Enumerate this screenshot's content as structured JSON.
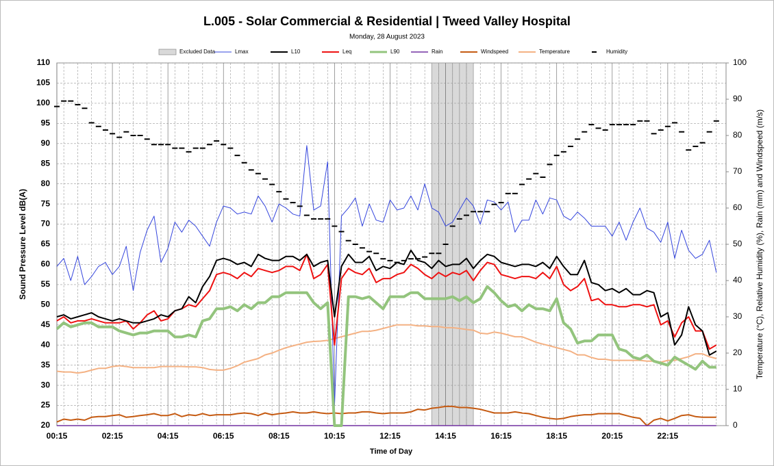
{
  "chart_data": {
    "type": "line",
    "title": "L.005 - Solar Commercial & Residential | Tweed Valley Hospital",
    "subtitle": "Monday, 28 August 2023",
    "x_label": "Time of Day",
    "y_label": "Sound Pressure Level dB(A)",
    "y2_label": "Temperature (°C), Relative Humidity (%), Rain (mm) and Windspeed (m/s)",
    "grid": true,
    "legend": "top",
    "xlim": [
      0.25,
      24.35
    ],
    "ylim": [
      20,
      110
    ],
    "y2lim": [
      0,
      100
    ],
    "xticks": [
      {
        "value": 0.25,
        "label": "00:15"
      },
      {
        "value": 2.25,
        "label": "02:15"
      },
      {
        "value": 4.25,
        "label": "04:15"
      },
      {
        "value": 6.25,
        "label": "06:15"
      },
      {
        "value": 8.25,
        "label": "08:15"
      },
      {
        "value": 10.25,
        "label": "10:15"
      },
      {
        "value": 12.25,
        "label": "12:15"
      },
      {
        "value": 14.25,
        "label": "14:15"
      },
      {
        "value": 16.25,
        "label": "16:15"
      },
      {
        "value": 18.25,
        "label": "18:15"
      },
      {
        "value": 20.25,
        "label": "20:15"
      },
      {
        "value": 22.25,
        "label": "22:15"
      }
    ],
    "yticks": [
      20,
      25,
      30,
      35,
      40,
      45,
      50,
      55,
      60,
      65,
      70,
      75,
      80,
      85,
      90,
      95,
      100,
      105,
      110
    ],
    "y2ticks": [
      0,
      10,
      20,
      30,
      40,
      50,
      60,
      70,
      80,
      90,
      100
    ],
    "excluded": {
      "name": "Excluded Data",
      "color": "#d9d9d9",
      "x": [
        13.75,
        15.25
      ]
    },
    "x": [
      0.25,
      0.5,
      0.75,
      1,
      1.25,
      1.5,
      1.75,
      2,
      2.25,
      2.5,
      2.75,
      3,
      3.25,
      3.5,
      3.75,
      4,
      4.25,
      4.5,
      4.75,
      5,
      5.25,
      5.5,
      5.75,
      6,
      6.25,
      6.5,
      6.75,
      7,
      7.25,
      7.5,
      7.75,
      8,
      8.25,
      8.5,
      8.75,
      9,
      9.25,
      9.5,
      9.75,
      10,
      10.25,
      10.5,
      10.75,
      11,
      11.25,
      11.5,
      11.75,
      12,
      12.25,
      12.5,
      12.75,
      13,
      13.25,
      13.5,
      13.75,
      14,
      14.25,
      14.5,
      14.75,
      15,
      15.25,
      15.5,
      15.75,
      16,
      16.25,
      16.5,
      16.75,
      17,
      17.25,
      17.5,
      17.75,
      18,
      18.25,
      18.5,
      18.75,
      19,
      19.25,
      19.5,
      19.75,
      20,
      20.25,
      20.5,
      20.75,
      21,
      21.25,
      21.5,
      21.75,
      22,
      22.25,
      22.5,
      22.75,
      23,
      23.25,
      23.5,
      23.75,
      24
    ],
    "series": [
      {
        "name": "Lmax",
        "color": "#3344dd",
        "line_width": 1,
        "values": [
          59.5,
          61.5,
          56,
          62,
          55,
          57,
          59.5,
          60.5,
          57.5,
          59.5,
          64.5,
          53.5,
          63,
          68.5,
          72,
          60.5,
          64,
          70.5,
          68,
          71,
          69.5,
          67,
          64.5,
          70.5,
          74.5,
          74,
          72.5,
          73,
          72.5,
          77,
          74.5,
          70.5,
          75,
          74,
          72.5,
          72,
          89.5,
          73.5,
          74.5,
          85.5,
          25,
          72,
          74,
          76.5,
          69.5,
          75,
          71,
          70.5,
          76,
          73.5,
          74,
          77,
          73.5,
          80,
          74,
          73,
          69.5,
          70.5,
          73.5,
          76.5,
          74.5,
          70,
          76,
          75.5,
          73.5,
          75.5,
          68,
          71,
          71,
          76,
          72.5,
          76.5,
          76,
          72,
          71,
          73,
          71.5,
          69.5,
          69.5,
          69.5,
          67,
          70.5,
          66,
          70.5,
          74,
          69,
          68,
          65.5,
          70.5,
          61.5,
          68.5,
          63.5,
          61.5,
          62.5,
          66,
          58
        ]
      },
      {
        "name": "L10",
        "color": "#000000",
        "line_width": 2,
        "values": [
          47,
          47.5,
          46.5,
          47,
          47.5,
          48,
          47,
          46.5,
          46,
          46.5,
          46,
          45.5,
          45.5,
          46,
          46.5,
          47.5,
          47,
          48.5,
          49,
          52,
          50.5,
          54.5,
          57,
          61,
          61.5,
          61,
          60,
          60.5,
          59.5,
          62.5,
          61.5,
          61,
          61,
          62,
          62,
          61,
          62.5,
          59.5,
          60.5,
          61,
          47,
          59.5,
          62.5,
          60.5,
          60.5,
          62,
          58.5,
          59.5,
          59,
          60.5,
          60,
          63.5,
          61,
          60.5,
          59,
          61,
          59.5,
          60,
          60,
          61.5,
          59,
          61,
          62.5,
          62,
          60.5,
          60,
          59.5,
          60,
          60,
          59.5,
          60.5,
          59,
          62,
          59.5,
          57.5,
          57.5,
          61,
          55.5,
          55,
          53.5,
          54,
          53,
          54,
          52.5,
          52.5,
          53.5,
          53,
          47,
          48,
          40,
          42.5,
          49.5,
          45,
          43.5,
          37.5,
          38.5
        ]
      },
      {
        "name": "Leq",
        "color": "#ee1111",
        "line_width": 2,
        "values": [
          46,
          47,
          45.5,
          46,
          46,
          46.5,
          46,
          45.5,
          45.5,
          45.5,
          46,
          44,
          45.5,
          47.5,
          48.5,
          46,
          46.5,
          48.5,
          49,
          50,
          49.5,
          51.5,
          53.5,
          57.5,
          58,
          57.5,
          56.5,
          58,
          57,
          59,
          58.5,
          58,
          58.5,
          59.5,
          59.5,
          58.5,
          62.5,
          56.5,
          57.5,
          60,
          40,
          56.5,
          59,
          58,
          57.5,
          59,
          55.5,
          56.5,
          56.5,
          57.5,
          58,
          60,
          59,
          57.5,
          56.5,
          58,
          57,
          58,
          57.5,
          58.5,
          56,
          58.5,
          60.5,
          60,
          57.5,
          57,
          56.5,
          57,
          57,
          56.5,
          58,
          56.5,
          59.5,
          55,
          53.5,
          54.5,
          56.5,
          51,
          51.5,
          50,
          50,
          49.5,
          49.5,
          50,
          50,
          49.5,
          50,
          45,
          46,
          42,
          45.5,
          47,
          43.5,
          43.5,
          39,
          40
        ]
      },
      {
        "name": "L90",
        "color": "#93c47d",
        "line_width": 4,
        "values": [
          44,
          45.5,
          44.5,
          45,
          45.5,
          45.5,
          44.5,
          44.5,
          44.5,
          43.5,
          43,
          42.5,
          43,
          43,
          43.5,
          43.5,
          43.5,
          42,
          42,
          42.5,
          42,
          46,
          46.5,
          49,
          49,
          49.5,
          48.5,
          50,
          49,
          50.5,
          50.5,
          52,
          52,
          53,
          53,
          53,
          53,
          50.5,
          49,
          50.5,
          20,
          20,
          52,
          52,
          51.5,
          52,
          50.5,
          49,
          52,
          52,
          52,
          53,
          53,
          51.5,
          51.5,
          51.5,
          51.5,
          52,
          51,
          52,
          50.5,
          51.5,
          54.5,
          53,
          51,
          49.5,
          50,
          48.5,
          50,
          49,
          49,
          48.5,
          51.5,
          45.5,
          44,
          40.5,
          41,
          41,
          42.5,
          42.5,
          42.5,
          39,
          38.5,
          37,
          36.5,
          37.5,
          36,
          35.5,
          35,
          37,
          36,
          35,
          34,
          36,
          34.5,
          34.5
        ]
      },
      {
        "name": "Rain",
        "color": "#7030a0",
        "line_width": 1.5,
        "axis": "y2",
        "values": [
          0,
          0,
          0,
          0,
          0,
          0,
          0,
          0,
          0,
          0,
          0,
          0,
          0,
          0,
          0,
          0,
          0,
          0,
          0,
          0,
          0,
          0,
          0,
          0,
          0,
          0,
          0,
          0,
          0,
          0,
          0,
          0,
          0,
          0,
          0,
          0,
          0,
          0,
          0,
          0,
          0,
          0,
          0,
          0,
          0,
          0,
          0,
          0,
          0,
          0,
          0,
          0,
          0,
          0,
          0,
          0,
          0,
          0,
          0,
          0,
          0,
          0,
          0,
          0,
          0,
          0,
          0,
          0,
          0,
          0,
          0,
          0,
          0,
          0,
          0,
          0,
          0,
          0,
          0,
          0,
          0,
          0,
          0,
          0,
          0,
          0,
          0,
          0,
          0,
          0,
          0,
          0,
          0,
          0,
          0,
          0
        ]
      },
      {
        "name": "Windspeed",
        "color": "#c55a11",
        "line_width": 2,
        "axis": "y2",
        "values": [
          1,
          1.8,
          1.5,
          1.8,
          1.5,
          2.3,
          2.5,
          2.5,
          2.8,
          3,
          2.3,
          2.5,
          2.8,
          3,
          3.3,
          2.8,
          2.8,
          3.3,
          2.5,
          3,
          2.8,
          3.3,
          2.8,
          3,
          3,
          3,
          3.3,
          3.5,
          3.3,
          2.8,
          3.5,
          3,
          3.3,
          3.5,
          3.8,
          3.5,
          3.5,
          3.8,
          3.5,
          3.3,
          3.5,
          3.3,
          3.5,
          3.5,
          3.8,
          3.8,
          3.5,
          3.3,
          3.5,
          3.5,
          3.5,
          3.8,
          4.5,
          4.3,
          4.8,
          5,
          5.3,
          5.3,
          5,
          5,
          4.8,
          4.5,
          4,
          3.5,
          3.5,
          3.5,
          3.8,
          3.5,
          3.3,
          2.8,
          2.3,
          2,
          1.8,
          2,
          2.5,
          2.8,
          3,
          3,
          3.3,
          3.3,
          3.3,
          3.3,
          2.8,
          2.3,
          2,
          0,
          1.5,
          2,
          1.3,
          2,
          2.8,
          3,
          2.5,
          2.3,
          2.3,
          2.3
        ]
      },
      {
        "name": "Temperature",
        "color": "#f4b183",
        "line_width": 2,
        "axis": "y2",
        "values": [
          15,
          14.8,
          14.8,
          14.5,
          14.8,
          15.3,
          15.8,
          15.8,
          16.3,
          16.5,
          16.3,
          16,
          16,
          16,
          16,
          16.3,
          16.3,
          16.3,
          16.3,
          16.2,
          16.2,
          16,
          15.5,
          15.3,
          15.3,
          15.8,
          16.5,
          17.5,
          18,
          18.5,
          19.5,
          20,
          20.8,
          21.5,
          22,
          22.5,
          23,
          23.2,
          23.3,
          23.5,
          24,
          24.5,
          25,
          25.5,
          26,
          26,
          26.3,
          26.8,
          27.3,
          27.8,
          27.8,
          27.8,
          27.5,
          27.5,
          27.3,
          27.3,
          27,
          27,
          26.8,
          26.5,
          26.3,
          25.5,
          25.3,
          25.8,
          25.5,
          25,
          24.5,
          24.5,
          23.8,
          23,
          22.5,
          22,
          21.5,
          21,
          20.5,
          19.5,
          19.5,
          18.8,
          18.3,
          18.3,
          18,
          18,
          18,
          18,
          18,
          17.8,
          17.8,
          17.5,
          18,
          18,
          18.5,
          19,
          19.8,
          19.8,
          19,
          18.5
        ]
      },
      {
        "name": "Humidity",
        "color": "#000000",
        "marker": "dash",
        "axis": "y2",
        "values": [
          88,
          89.5,
          89.5,
          88.5,
          87.5,
          83.5,
          82.5,
          81.5,
          80.5,
          79.5,
          81,
          80,
          80,
          79,
          77.5,
          77.5,
          77.5,
          76.5,
          76.5,
          75.5,
          76.5,
          76.5,
          77.5,
          78.5,
          77.5,
          76.5,
          74.5,
          72.5,
          70.5,
          69.5,
          68,
          66.5,
          64.5,
          62.5,
          61.5,
          60.5,
          58,
          57,
          57,
          57,
          55,
          53.5,
          51,
          50,
          49,
          48,
          47.5,
          46,
          45.5,
          45,
          45.5,
          46,
          46,
          46.5,
          47.5,
          47.5,
          50,
          55,
          57,
          58,
          59,
          59,
          59,
          61,
          61.5,
          64,
          64,
          66.5,
          68,
          69.5,
          68.5,
          72,
          74.5,
          75.5,
          77,
          79,
          81,
          83,
          82,
          81.5,
          83,
          83,
          83,
          83,
          84,
          84,
          80.5,
          81.5,
          82.5,
          83.5,
          81,
          76,
          77,
          78,
          81,
          84
        ]
      }
    ]
  }
}
